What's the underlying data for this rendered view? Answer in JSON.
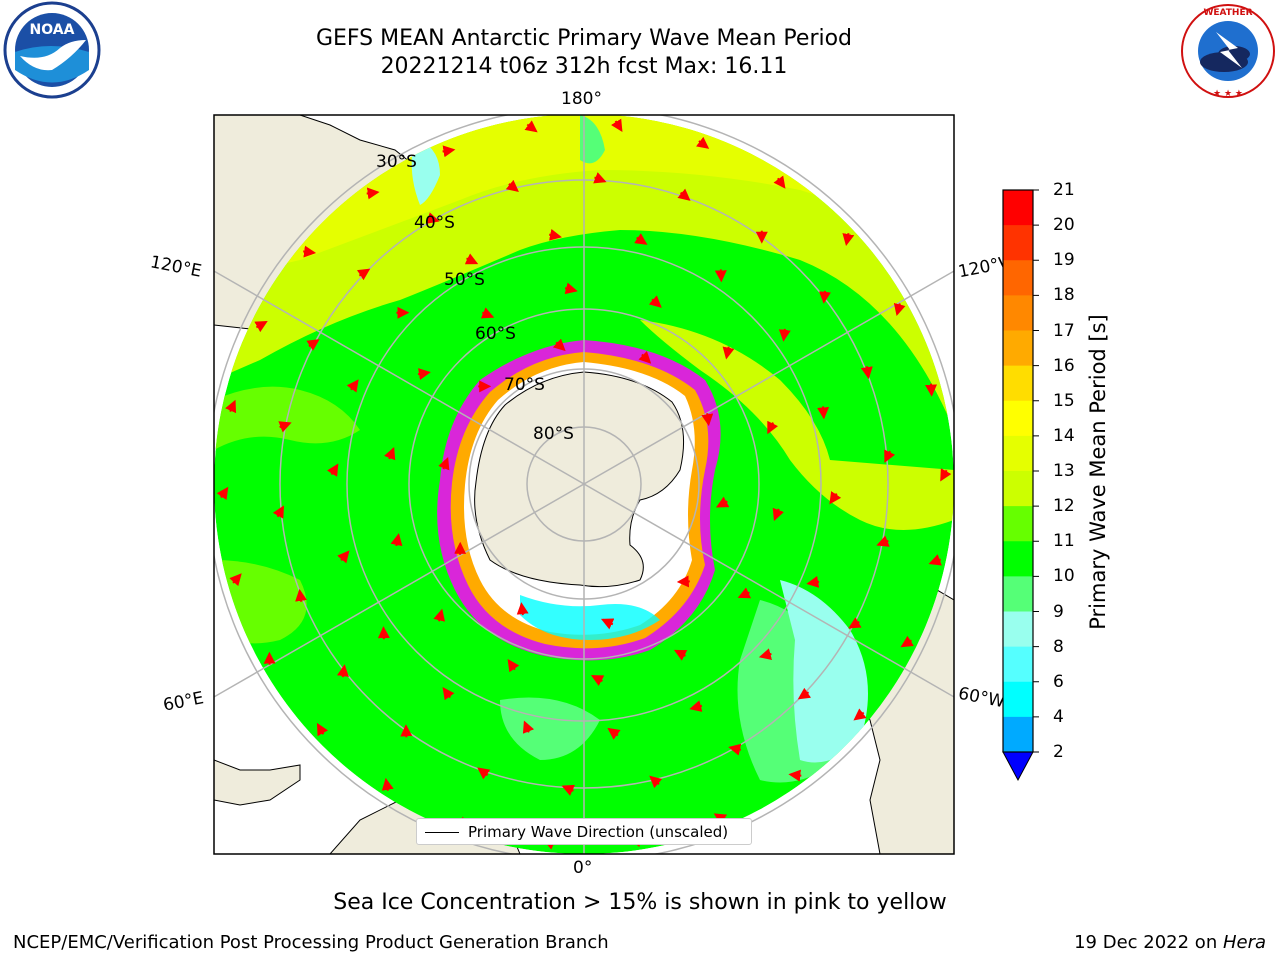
{
  "title": {
    "line1": "GEFS MEAN Antarctic Primary Wave Mean Period",
    "line2": "20221214 t06z 312h fcst   Max: 16.11"
  },
  "logos": {
    "left": {
      "name": "noaa-logo",
      "text": "NOAA"
    },
    "right": {
      "name": "nws-logo",
      "text": "NATIONAL WEATHER SERVICE"
    }
  },
  "map": {
    "projection": "south-polar-stereographic",
    "longitude_labels": {
      "top": "180°",
      "bottom": "0°",
      "left_upper": "120°E",
      "left_lower": "60°E",
      "right_upper": "120°W",
      "right_lower": "60°W"
    },
    "latitude_labels": [
      "30°S",
      "40°S",
      "50°S",
      "60°S",
      "70°S",
      "80°S"
    ],
    "legend": {
      "label": "Primary Wave Direction (unscaled)"
    },
    "land_color": "#efecdc",
    "grid_color": "#b4b4b4",
    "arrow_color": "#ff0000",
    "sea_ice_colors": [
      "#ff00ff",
      "#ff9900",
      "#ffff00",
      "#ffffff",
      "#00ffff"
    ]
  },
  "colorbar": {
    "title": "Primary Wave Mean Period [s]",
    "ticks": [
      "21",
      "20",
      "19",
      "18",
      "17",
      "16",
      "15",
      "14",
      "13",
      "12",
      "11",
      "10",
      "9",
      "8",
      "6",
      "4",
      "2"
    ],
    "colors": [
      "#ff0000",
      "#ff3300",
      "#ff6600",
      "#ff8800",
      "#ffaa00",
      "#ffdd00",
      "#ffff00",
      "#e5ff00",
      "#ccff00",
      "#66ff00",
      "#00ff00",
      "#55ff77",
      "#99ffee",
      "#55ffff",
      "#00ffff",
      "#00aaff",
      "#0000ff"
    ],
    "under_color": "#0000ff"
  },
  "footer": {
    "note": "Sea Ice Concentration > 15% is shown in pink to yellow",
    "credit_left": "NCEP/EMC/Verification Post Processing Product Generation Branch",
    "credit_right_date": "19 Dec 2022 on ",
    "credit_right_host": "Hera"
  }
}
